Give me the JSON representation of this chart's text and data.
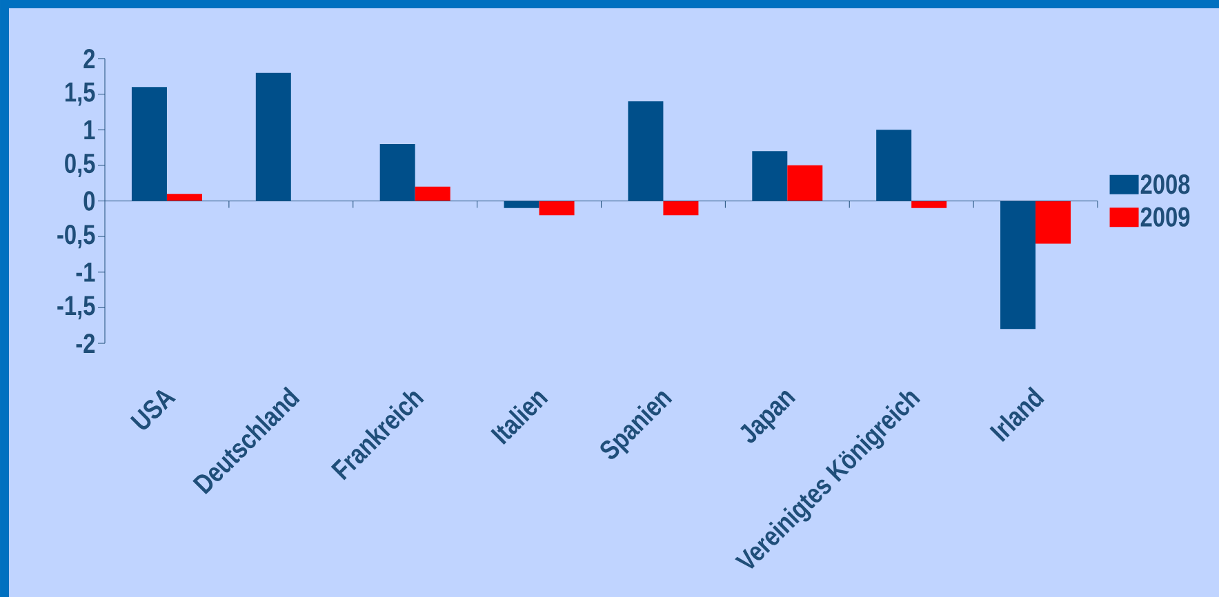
{
  "chart_data": {
    "type": "bar",
    "categories": [
      "USA",
      "Deutschland",
      "Frankreich",
      "Italien",
      "Spanien",
      "Japan",
      "Vereinigtes Königreich",
      "Irland"
    ],
    "series": [
      {
        "name": "2008",
        "color": "#004f8a",
        "values": [
          1.6,
          1.8,
          0.8,
          -0.1,
          1.4,
          0.7,
          1.0,
          -1.8
        ]
      },
      {
        "name": "2009",
        "color": "#ff0000",
        "values": [
          0.1,
          null,
          0.2,
          -0.2,
          -0.2,
          0.5,
          -0.1,
          -0.6
        ]
      }
    ],
    "ylim": [
      -2,
      2
    ],
    "yticks": [
      {
        "value": -2,
        "label": "-2"
      },
      {
        "value": -1.5,
        "label": "-1,5"
      },
      {
        "value": -1,
        "label": "-1"
      },
      {
        "value": -0.5,
        "label": "-0,5"
      },
      {
        "value": 0,
        "label": "0"
      },
      {
        "value": 0.5,
        "label": "0,5"
      },
      {
        "value": 1,
        "label": "1"
      },
      {
        "value": 1.5,
        "label": "1,5"
      },
      {
        "value": 2,
        "label": "2"
      }
    ],
    "ref_lines": [
      {
        "axis": "y",
        "value": 0,
        "color": "#1f4e79"
      }
    ],
    "legend": "right"
  }
}
